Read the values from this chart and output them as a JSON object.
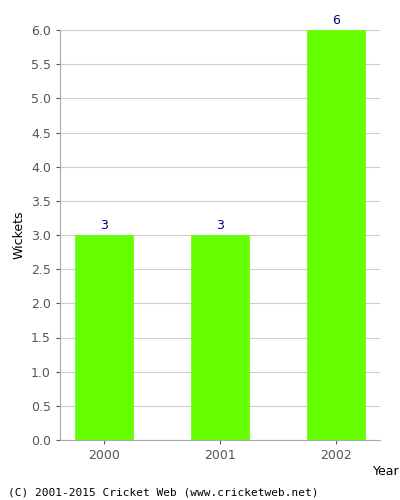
{
  "categories": [
    "2000",
    "2001",
    "2002"
  ],
  "values": [
    3,
    3,
    6
  ],
  "bar_color": "#66ff00",
  "bar_edge_color": "#66ff00",
  "label_color": "#000080",
  "xlabel": "Year",
  "ylabel": "Wickets",
  "ylim": [
    0,
    6.0
  ],
  "yticks": [
    0.0,
    0.5,
    1.0,
    1.5,
    2.0,
    2.5,
    3.0,
    3.5,
    4.0,
    4.5,
    5.0,
    5.5,
    6.0
  ],
  "label_fontsize": 9,
  "axis_label_fontsize": 9,
  "tick_fontsize": 9,
  "footer_text": "(C) 2001-2015 Cricket Web (www.cricketweb.net)",
  "footer_fontsize": 8,
  "background_color": "#ffffff",
  "grid_color": "#cccccc"
}
